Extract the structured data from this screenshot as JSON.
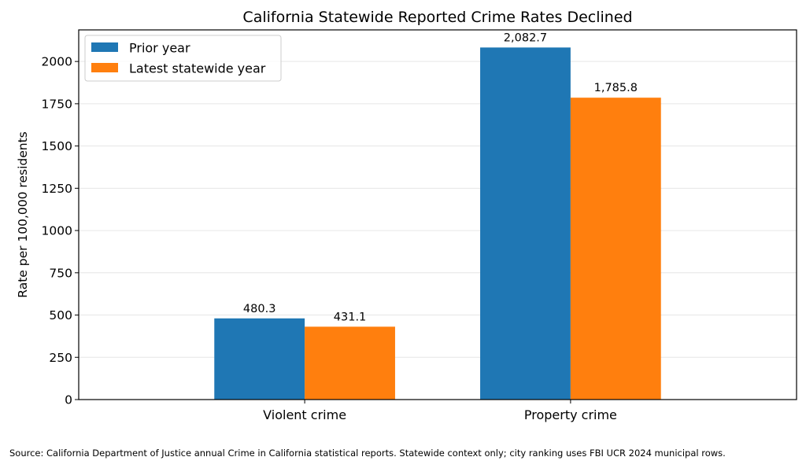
{
  "chart_data": {
    "type": "bar",
    "title": "California Statewide Reported Crime Rates Declined",
    "xlabel": "",
    "ylabel": "Rate per 100,000 residents",
    "categories": [
      "Violent crime",
      "Property crime"
    ],
    "series": [
      {
        "name": "Prior year",
        "values": [
          480.3,
          2082.7
        ],
        "labels": [
          "480.3",
          "2,082.7"
        ],
        "color": "#1f77b4"
      },
      {
        "name": "Latest statewide year",
        "values": [
          431.1,
          1785.8
        ],
        "labels": [
          "431.1",
          "1,785.8"
        ],
        "color": "#ff7f0e"
      }
    ],
    "ylim": [
      0,
      2186.8
    ],
    "yticks": [
      0,
      250,
      500,
      750,
      1000,
      1250,
      1500,
      1750,
      2000
    ],
    "grid": "horizontal",
    "legend_position": "top-left"
  },
  "source_note": "Source: California Department of Justice annual Crime in California statistical reports. Statewide context only; city ranking uses FBI UCR 2024 municipal rows."
}
